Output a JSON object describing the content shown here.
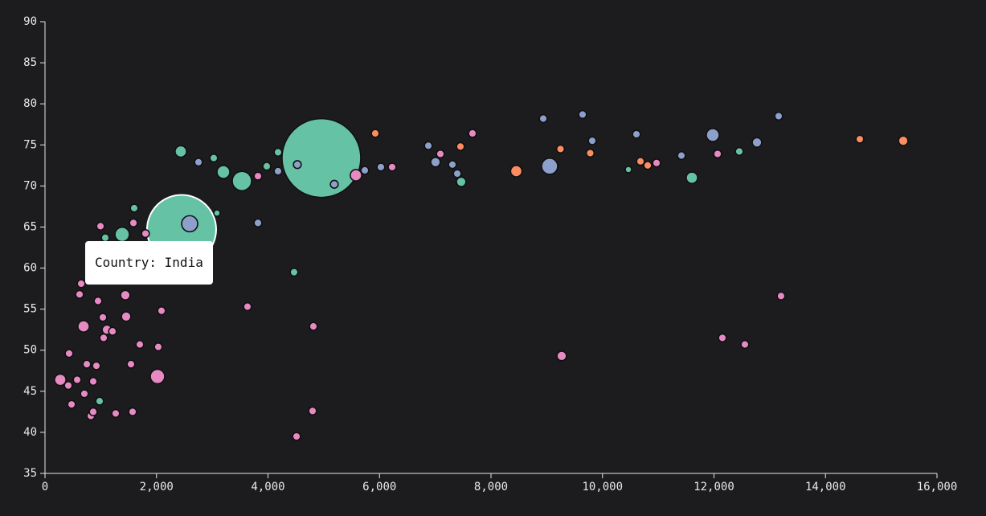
{
  "chart_data": {
    "type": "bubble",
    "x": [
      4958,
      2450,
      2436,
      3027,
      3200,
      3532,
      3978,
      4180,
      3085,
      1600,
      1081,
      1384,
      4468,
      980,
      7466,
      10465,
      11604,
      12454,
      5924,
      7452,
      8454,
      9247,
      9780,
      10681,
      10811,
      14616,
      15395,
      2753,
      4180,
      4526,
      5189,
      5737,
      6025,
      3820,
      2595,
      6876,
      7005,
      7308,
      7395,
      8937,
      9643,
      9816,
      9052,
      10609,
      11416,
      11978,
      12771,
      13160,
      5578,
      6227,
      7092,
      7668,
      3820,
      1586,
      1802,
      995,
      649,
      620,
      951,
      1441,
      2090,
      3632,
      692,
      1038,
      1456,
      1110,
      1211,
      1052,
      4814,
      1701,
      2032,
      432,
      750,
      922,
      1542,
      274,
      577,
      865,
      2018,
      418,
      706,
      476,
      822,
      865,
      1268,
      1571,
      4800,
      4512,
      9268,
      12065,
      10970,
      12151,
      12555,
      13203
    ],
    "values": [
      73.4,
      64.7,
      74.2,
      73.4,
      71.7,
      70.6,
      72.4,
      74.1,
      66.7,
      67.3,
      63.7,
      64.1,
      59.5,
      43.8,
      70.5,
      72,
      71,
      74.2,
      76.4,
      74.8,
      71.8,
      74.5,
      74,
      73,
      72.5,
      75.7,
      75.5,
      72.9,
      71.8,
      72.6,
      70.2,
      71.9,
      72.3,
      65.5,
      65.4,
      74.9,
      72.9,
      72.6,
      71.5,
      78.2,
      78.7,
      75.5,
      72.4,
      76.3,
      73.7,
      76.2,
      75.3,
      78.5,
      71.3,
      72.3,
      73.9,
      76.4,
      71.2,
      65.5,
      64.2,
      65.1,
      58.1,
      56.8,
      56,
      56.7,
      54.8,
      55.3,
      52.9,
      54,
      54.1,
      52.5,
      52.3,
      51.5,
      52.9,
      50.7,
      50.4,
      49.6,
      48.3,
      48.1,
      48.3,
      46.4,
      46.4,
      46.2,
      46.8,
      45.7,
      44.7,
      43.4,
      42,
      42.5,
      42.3,
      42.5,
      42.6,
      39.5,
      49.3,
      73.9,
      72.8,
      51.5,
      50.7,
      56.6
    ],
    "sizes": [
      1252,
      947,
      10,
      2,
      15,
      48,
      2,
      2,
      0.6,
      2,
      2,
      21,
      2,
      2,
      5,
      0.6,
      10,
      2,
      2,
      2,
      10,
      2,
      2,
      2,
      2,
      2,
      5,
      2,
      2,
      2,
      2,
      2,
      2,
      2,
      29,
      2,
      5,
      2,
      2,
      2,
      2,
      2,
      29,
      2,
      2,
      15,
      5,
      2,
      10,
      2,
      2,
      2,
      2,
      2,
      2,
      2,
      2,
      2,
      2,
      5,
      2,
      2,
      10,
      2,
      5,
      5,
      2,
      2,
      2,
      2,
      2,
      2,
      2,
      2,
      2,
      10,
      2,
      2,
      21,
      2,
      2,
      2,
      2,
      2,
      2,
      2,
      2,
      2,
      5,
      2,
      2,
      2,
      2,
      2
    ],
    "colors": [
      "#66c2a5",
      "#66c2a5",
      "#66c2a5",
      "#66c2a5",
      "#66c2a5",
      "#66c2a5",
      "#66c2a5",
      "#66c2a5",
      "#66c2a5",
      "#66c2a5",
      "#66c2a5",
      "#66c2a5",
      "#66c2a5",
      "#66c2a5",
      "#66c2a5",
      "#66c2a5",
      "#66c2a5",
      "#66c2a5",
      "#fc8d62",
      "#fc8d62",
      "#fc8d62",
      "#fc8d62",
      "#fc8d62",
      "#fc8d62",
      "#fc8d62",
      "#fc8d62",
      "#fc8d62",
      "#8da0cb",
      "#8da0cb",
      "#8da0cb",
      "#8da0cb",
      "#8da0cb",
      "#8da0cb",
      "#8da0cb",
      "#8da0cb",
      "#8da0cb",
      "#8da0cb",
      "#8da0cb",
      "#8da0cb",
      "#8da0cb",
      "#8da0cb",
      "#8da0cb",
      "#8da0cb",
      "#8da0cb",
      "#8da0cb",
      "#8da0cb",
      "#8da0cb",
      "#8da0cb",
      "#e78ac3",
      "#e78ac3",
      "#e78ac3",
      "#e78ac3",
      "#e78ac3",
      "#e78ac3",
      "#e78ac3",
      "#e78ac3",
      "#e78ac3",
      "#e78ac3",
      "#e78ac3",
      "#e78ac3",
      "#e78ac3",
      "#e78ac3",
      "#e78ac3",
      "#e78ac3",
      "#e78ac3",
      "#e78ac3",
      "#e78ac3",
      "#e78ac3",
      "#e78ac3",
      "#e78ac3",
      "#e78ac3",
      "#e78ac3",
      "#e78ac3",
      "#e78ac3",
      "#e78ac3",
      "#e78ac3",
      "#e78ac3",
      "#e78ac3",
      "#e78ac3",
      "#e78ac3",
      "#e78ac3",
      "#e78ac3",
      "#e78ac3",
      "#e78ac3",
      "#e78ac3",
      "#e78ac3",
      "#e78ac3",
      "#e78ac3",
      "#e78ac3",
      "#e78ac3",
      "#e78ac3",
      "#e78ac3",
      "#e78ac3",
      "#e78ac3"
    ],
    "xlim": [
      0,
      16000
    ],
    "xticks": [
      0,
      {
        "value": 2000,
        "label": "2,000"
      },
      {
        "value": 4000,
        "label": "4,000"
      },
      {
        "value": 6000,
        "label": "6,000"
      },
      {
        "value": 8000,
        "label": "8,000"
      },
      {
        "value": 10000,
        "label": "10,000"
      },
      {
        "value": 12000,
        "label": "12,000"
      },
      {
        "value": 14000,
        "label": "14,000"
      },
      {
        "value": 16000,
        "label": "16,000"
      }
    ],
    "ylim": [
      35,
      90
    ],
    "yticks": [
      35,
      40,
      45,
      50,
      55,
      60,
      65,
      70,
      75,
      80,
      85,
      90
    ],
    "tooltip": {
      "text": "Country: India",
      "point": 1
    }
  }
}
